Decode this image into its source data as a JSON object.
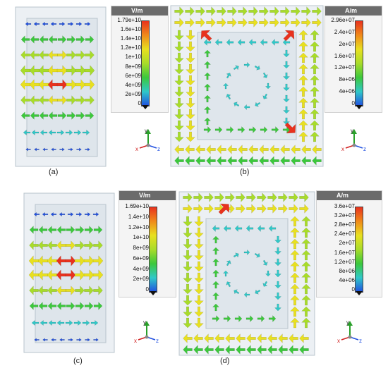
{
  "figure": {
    "captions": [
      "(a)",
      "(b)",
      "(c)",
      "(d)"
    ]
  },
  "legends": {
    "a": {
      "unit": "V/m",
      "ticks": [
        "1.79e+10",
        "1.6e+10",
        "1.4e+10",
        "1.2e+10",
        "1e+10",
        "8e+09",
        "6e+09",
        "4e+09",
        "2e+09",
        "0"
      ]
    },
    "b": {
      "unit": "A/m",
      "ticks": [
        "2.96e+07",
        "2.4e+07",
        "2e+07",
        "1.6e+07",
        "1.2e+07",
        "8e+06",
        "4e+06",
        "0"
      ]
    },
    "c": {
      "unit": "V/m",
      "ticks": [
        "1.69e+10",
        "1.4e+10",
        "1.2e+10",
        "1e+10",
        "8e+09",
        "6e+09",
        "4e+09",
        "2e+09",
        "0"
      ]
    },
    "d": {
      "unit": "A/m",
      "ticks": [
        "3.6e+07",
        "3.2e+07",
        "2.8e+07",
        "2.4e+07",
        "2e+07",
        "1.6e+07",
        "1.2e+07",
        "8e+06",
        "4e+06",
        "0"
      ]
    }
  },
  "axis_labels": {
    "y": "y",
    "x": "x",
    "z": "z"
  },
  "colors": {
    "red": "#e8321e",
    "orange": "#f08a1a",
    "yellow": "#e8e020",
    "lime": "#a8dc2a",
    "green": "#3cc83c",
    "cyan": "#30c8c8",
    "blue": "#2050e0"
  }
}
